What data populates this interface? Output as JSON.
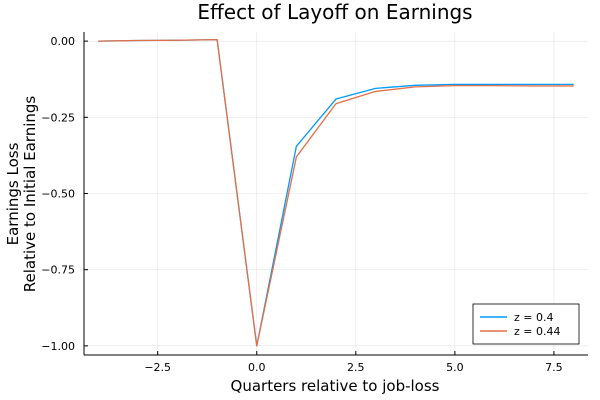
{
  "chart_data": {
    "type": "line",
    "title": "Effect of Layoff on Earnings",
    "xlabel": "Quarters relative to job-loss",
    "ylabel_lines": [
      "Earnings Loss",
      "Relative to Initial Earnings"
    ],
    "xlim": [
      -4.36,
      8.36
    ],
    "ylim": [
      -1.03,
      0.03
    ],
    "x_ticks": [
      -2.5,
      0,
      2.5,
      5,
      7.5
    ],
    "x_tick_labels": [
      "−2.5",
      "0.0",
      "2.5",
      "5.0",
      "7.5"
    ],
    "y_ticks": [
      0,
      -0.25,
      -0.5,
      -0.75,
      -1
    ],
    "y_tick_labels": [
      "0.00",
      "−0.25",
      "−0.50",
      "−0.75",
      "−1.00"
    ],
    "grid": true,
    "legend_position": "bottom-right",
    "x": [
      -4,
      -3,
      -2,
      -1,
      0,
      1,
      2,
      3,
      4,
      5,
      6,
      7,
      8
    ],
    "series": [
      {
        "name": "z = 0.4",
        "color": "#009AFA",
        "values": [
          0.0,
          0.002,
          0.003,
          0.005,
          -1.0,
          -0.345,
          -0.19,
          -0.155,
          -0.145,
          -0.142,
          -0.142,
          -0.142,
          -0.142
        ]
      },
      {
        "name": "z = 0.44",
        "color": "#E36F47",
        "values": [
          0.0,
          0.002,
          0.003,
          0.005,
          -1.0,
          -0.38,
          -0.205,
          -0.165,
          -0.15,
          -0.146,
          -0.146,
          -0.147,
          -0.147
        ]
      }
    ]
  }
}
